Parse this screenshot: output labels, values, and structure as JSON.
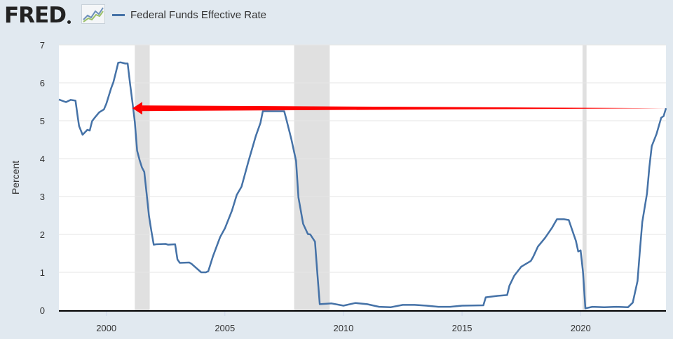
{
  "header": {
    "logo_text": "FRED",
    "logo_icon": "trend-graph-icon",
    "legend_label": "Federal Funds Effective Rate"
  },
  "colors": {
    "background": "#e1e9f0",
    "plot_background": "#ffffff",
    "series_line": "#4572a7",
    "recession_band": "#e0e0e0",
    "annotation_arrow": "#ff0000",
    "axis_line": "#000000"
  },
  "chart_data": {
    "type": "line",
    "title": "",
    "xlabel": "",
    "ylabel": "Percent",
    "xlim": [
      1998.0,
      2023.6
    ],
    "ylim": [
      0,
      7
    ],
    "x_ticks": [
      2000,
      2005,
      2010,
      2015,
      2020
    ],
    "y_ticks": [
      0,
      1,
      2,
      3,
      4,
      5,
      6,
      7
    ],
    "grid": "horizontal",
    "legend_position": "top-left",
    "series": [
      {
        "name": "Federal Funds Effective Rate",
        "x": [
          1998.0,
          1998.3,
          1998.5,
          1998.7,
          1998.8,
          1998.85,
          1999.0,
          1999.2,
          1999.3,
          1999.4,
          1999.5,
          1999.7,
          1999.9,
          2000.0,
          2000.2,
          2000.3,
          2000.4,
          2000.5,
          2000.6,
          2000.8,
          2000.9,
          2001.0,
          2001.1,
          2001.2,
          2001.3,
          2001.4,
          2001.5,
          2001.6,
          2001.7,
          2001.8,
          2001.9,
          2002.0,
          2002.1,
          2002.5,
          2002.6,
          2002.9,
          2003.0,
          2003.1,
          2003.5,
          2003.6,
          2004.0,
          2004.2,
          2004.3,
          2004.5,
          2004.8,
          2005.0,
          2005.3,
          2005.5,
          2005.7,
          2006.0,
          2006.3,
          2006.5,
          2006.6,
          2007.0,
          2007.5,
          2007.6,
          2007.8,
          2008.0,
          2008.1,
          2008.3,
          2008.5,
          2008.6,
          2008.8,
          2008.9,
          2009.0,
          2009.5,
          2010.0,
          2010.5,
          2011.0,
          2011.5,
          2012.0,
          2012.5,
          2013.0,
          2013.5,
          2014.0,
          2014.5,
          2015.0,
          2015.9,
          2016.0,
          2016.5,
          2016.9,
          2017.0,
          2017.2,
          2017.5,
          2017.9,
          2018.0,
          2018.2,
          2018.5,
          2018.8,
          2019.0,
          2019.3,
          2019.5,
          2019.8,
          2019.9,
          2020.0,
          2020.1,
          2020.2,
          2020.5,
          2021.0,
          2021.5,
          2022.0,
          2022.2,
          2022.4,
          2022.5,
          2022.6,
          2022.8,
          2022.9,
          2023.0,
          2023.2,
          2023.4,
          2023.5,
          2023.6
        ],
        "values": [
          5.56,
          5.49,
          5.55,
          5.53,
          5.07,
          4.86,
          4.63,
          4.76,
          4.74,
          4.99,
          5.07,
          5.22,
          5.3,
          5.45,
          5.85,
          6.02,
          6.27,
          6.53,
          6.54,
          6.51,
          6.51,
          5.98,
          5.49,
          4.97,
          4.21,
          3.97,
          3.77,
          3.65,
          3.07,
          2.49,
          2.09,
          1.73,
          1.74,
          1.75,
          1.73,
          1.74,
          1.34,
          1.25,
          1.26,
          1.22,
          1.0,
          1.0,
          1.03,
          1.43,
          1.93,
          2.16,
          2.63,
          3.04,
          3.26,
          3.94,
          4.59,
          4.94,
          5.25,
          5.25,
          5.25,
          5.02,
          4.52,
          3.94,
          2.98,
          2.28,
          2.01,
          2.0,
          1.81,
          0.97,
          0.16,
          0.18,
          0.12,
          0.19,
          0.16,
          0.09,
          0.08,
          0.14,
          0.14,
          0.12,
          0.09,
          0.09,
          0.12,
          0.13,
          0.34,
          0.38,
          0.4,
          0.65,
          0.91,
          1.15,
          1.3,
          1.41,
          1.68,
          1.91,
          2.18,
          2.4,
          2.4,
          2.38,
          1.83,
          1.55,
          1.58,
          1.01,
          0.05,
          0.09,
          0.08,
          0.09,
          0.08,
          0.2,
          0.77,
          1.58,
          2.33,
          3.08,
          3.78,
          4.33,
          4.65,
          5.08,
          5.12,
          5.33
        ]
      }
    ],
    "recession_bands": [
      [
        2001.2,
        2001.83
      ],
      [
        2007.92,
        2009.42
      ],
      [
        2020.08,
        2020.25
      ]
    ],
    "annotations": [
      {
        "type": "arrow",
        "color": "#ff0000",
        "from": [
          2023.6,
          5.33
        ],
        "to": [
          2001.1,
          5.33
        ]
      }
    ]
  }
}
